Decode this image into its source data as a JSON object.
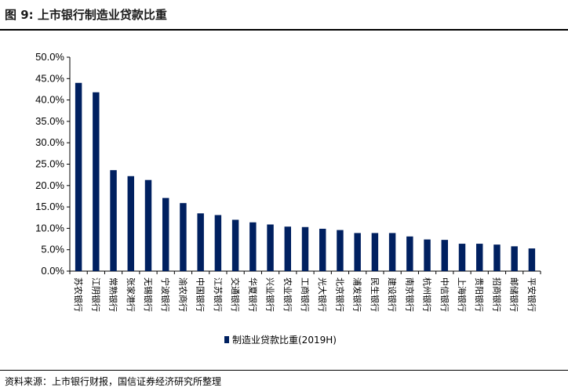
{
  "header": {
    "figure_no": "图 9:",
    "title": "上市银行制造业贷款比重"
  },
  "footer": {
    "source": "资料来源：上市银行财报，国信证券经济研究所整理"
  },
  "colors": {
    "bar": "#002060",
    "axis": "#000000"
  },
  "chart_data": {
    "type": "bar",
    "title": "",
    "xlabel": "",
    "ylabel": "",
    "ylim": [
      0,
      0.5
    ],
    "y_tick_step": 0.05,
    "y_tick_format": "percent_1dp",
    "grid": false,
    "legend_position": "bottom",
    "categories": [
      "苏农银行",
      "江阴银行",
      "常熟银行",
      "张家港行",
      "无锡银行",
      "宁波银行",
      "渝农商行",
      "中国银行",
      "江苏银行",
      "交通银行",
      "华夏银行",
      "兴业银行",
      "农业银行",
      "工商银行",
      "光大银行",
      "北京银行",
      "浦发银行",
      "民生银行",
      "建设银行",
      "南京银行",
      "杭州银行",
      "中信银行",
      "上海银行",
      "贵阳银行",
      "招商银行",
      "邮储银行",
      "平安银行"
    ],
    "series": [
      {
        "name": "制造业贷款比重(2019H)",
        "values": [
          0.44,
          0.418,
          0.236,
          0.222,
          0.213,
          0.171,
          0.159,
          0.135,
          0.131,
          0.12,
          0.114,
          0.109,
          0.104,
          0.103,
          0.099,
          0.096,
          0.089,
          0.089,
          0.089,
          0.081,
          0.074,
          0.073,
          0.064,
          0.064,
          0.062,
          0.058,
          0.053
        ]
      }
    ]
  }
}
